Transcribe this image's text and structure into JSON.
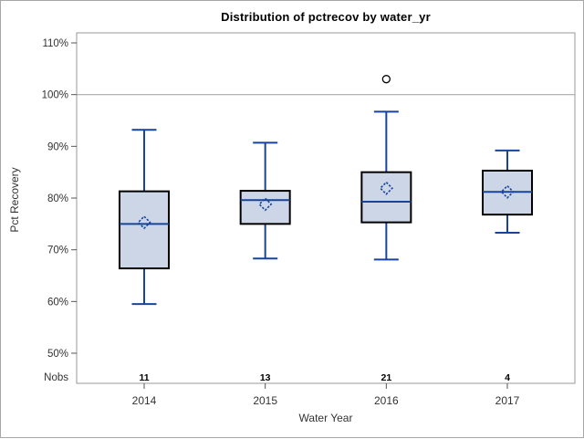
{
  "window": {
    "background": "#ffffff",
    "border_color": "#a6a6a6"
  },
  "chart_data": {
    "type": "box",
    "title": "Distribution of pctrecov by water_yr",
    "xlabel": "Water Year",
    "ylabel": "Pct Recovery",
    "y_tick_values": [
      110,
      100,
      90,
      80,
      70,
      60,
      50
    ],
    "y_tick_suffix": "%",
    "ylim": [
      44,
      112
    ],
    "grid": "off",
    "legend_position": "none",
    "reference_line_y": 100,
    "nobs_row_label": "Nobs",
    "categories": [
      "2014",
      "2015",
      "2016",
      "2017"
    ],
    "series": [
      {
        "category": "2014",
        "nobs": "11",
        "whisker_low": 59.5,
        "q1": 66.4,
        "median": 75.0,
        "mean": 75.3,
        "q3": 81.3,
        "whisker_high": 93.2,
        "outliers": []
      },
      {
        "category": "2015",
        "nobs": "13",
        "whisker_low": 68.3,
        "q1": 75.0,
        "median": 79.6,
        "mean": 78.8,
        "q3": 81.4,
        "whisker_high": 90.7,
        "outliers": []
      },
      {
        "category": "2016",
        "nobs": "21",
        "whisker_low": 68.1,
        "q1": 75.3,
        "median": 79.3,
        "mean": 81.9,
        "q3": 85.0,
        "whisker_high": 96.7,
        "outliers": [
          103
        ]
      },
      {
        "category": "2017",
        "nobs": "4",
        "whisker_low": 73.3,
        "q1": 76.8,
        "median": 81.2,
        "mean": 81.2,
        "q3": 85.3,
        "whisker_high": 89.2,
        "outliers": []
      }
    ],
    "colors": {
      "box_fill": "#ccd6e6",
      "box_border": "#000000",
      "line": "#17449b",
      "frame": "#9a9a9a",
      "reference_line": "#a9a9a9",
      "tick_mark": "#555555",
      "outlier_stroke": "#000000",
      "text": "#333333",
      "title_text": "#000000"
    }
  }
}
